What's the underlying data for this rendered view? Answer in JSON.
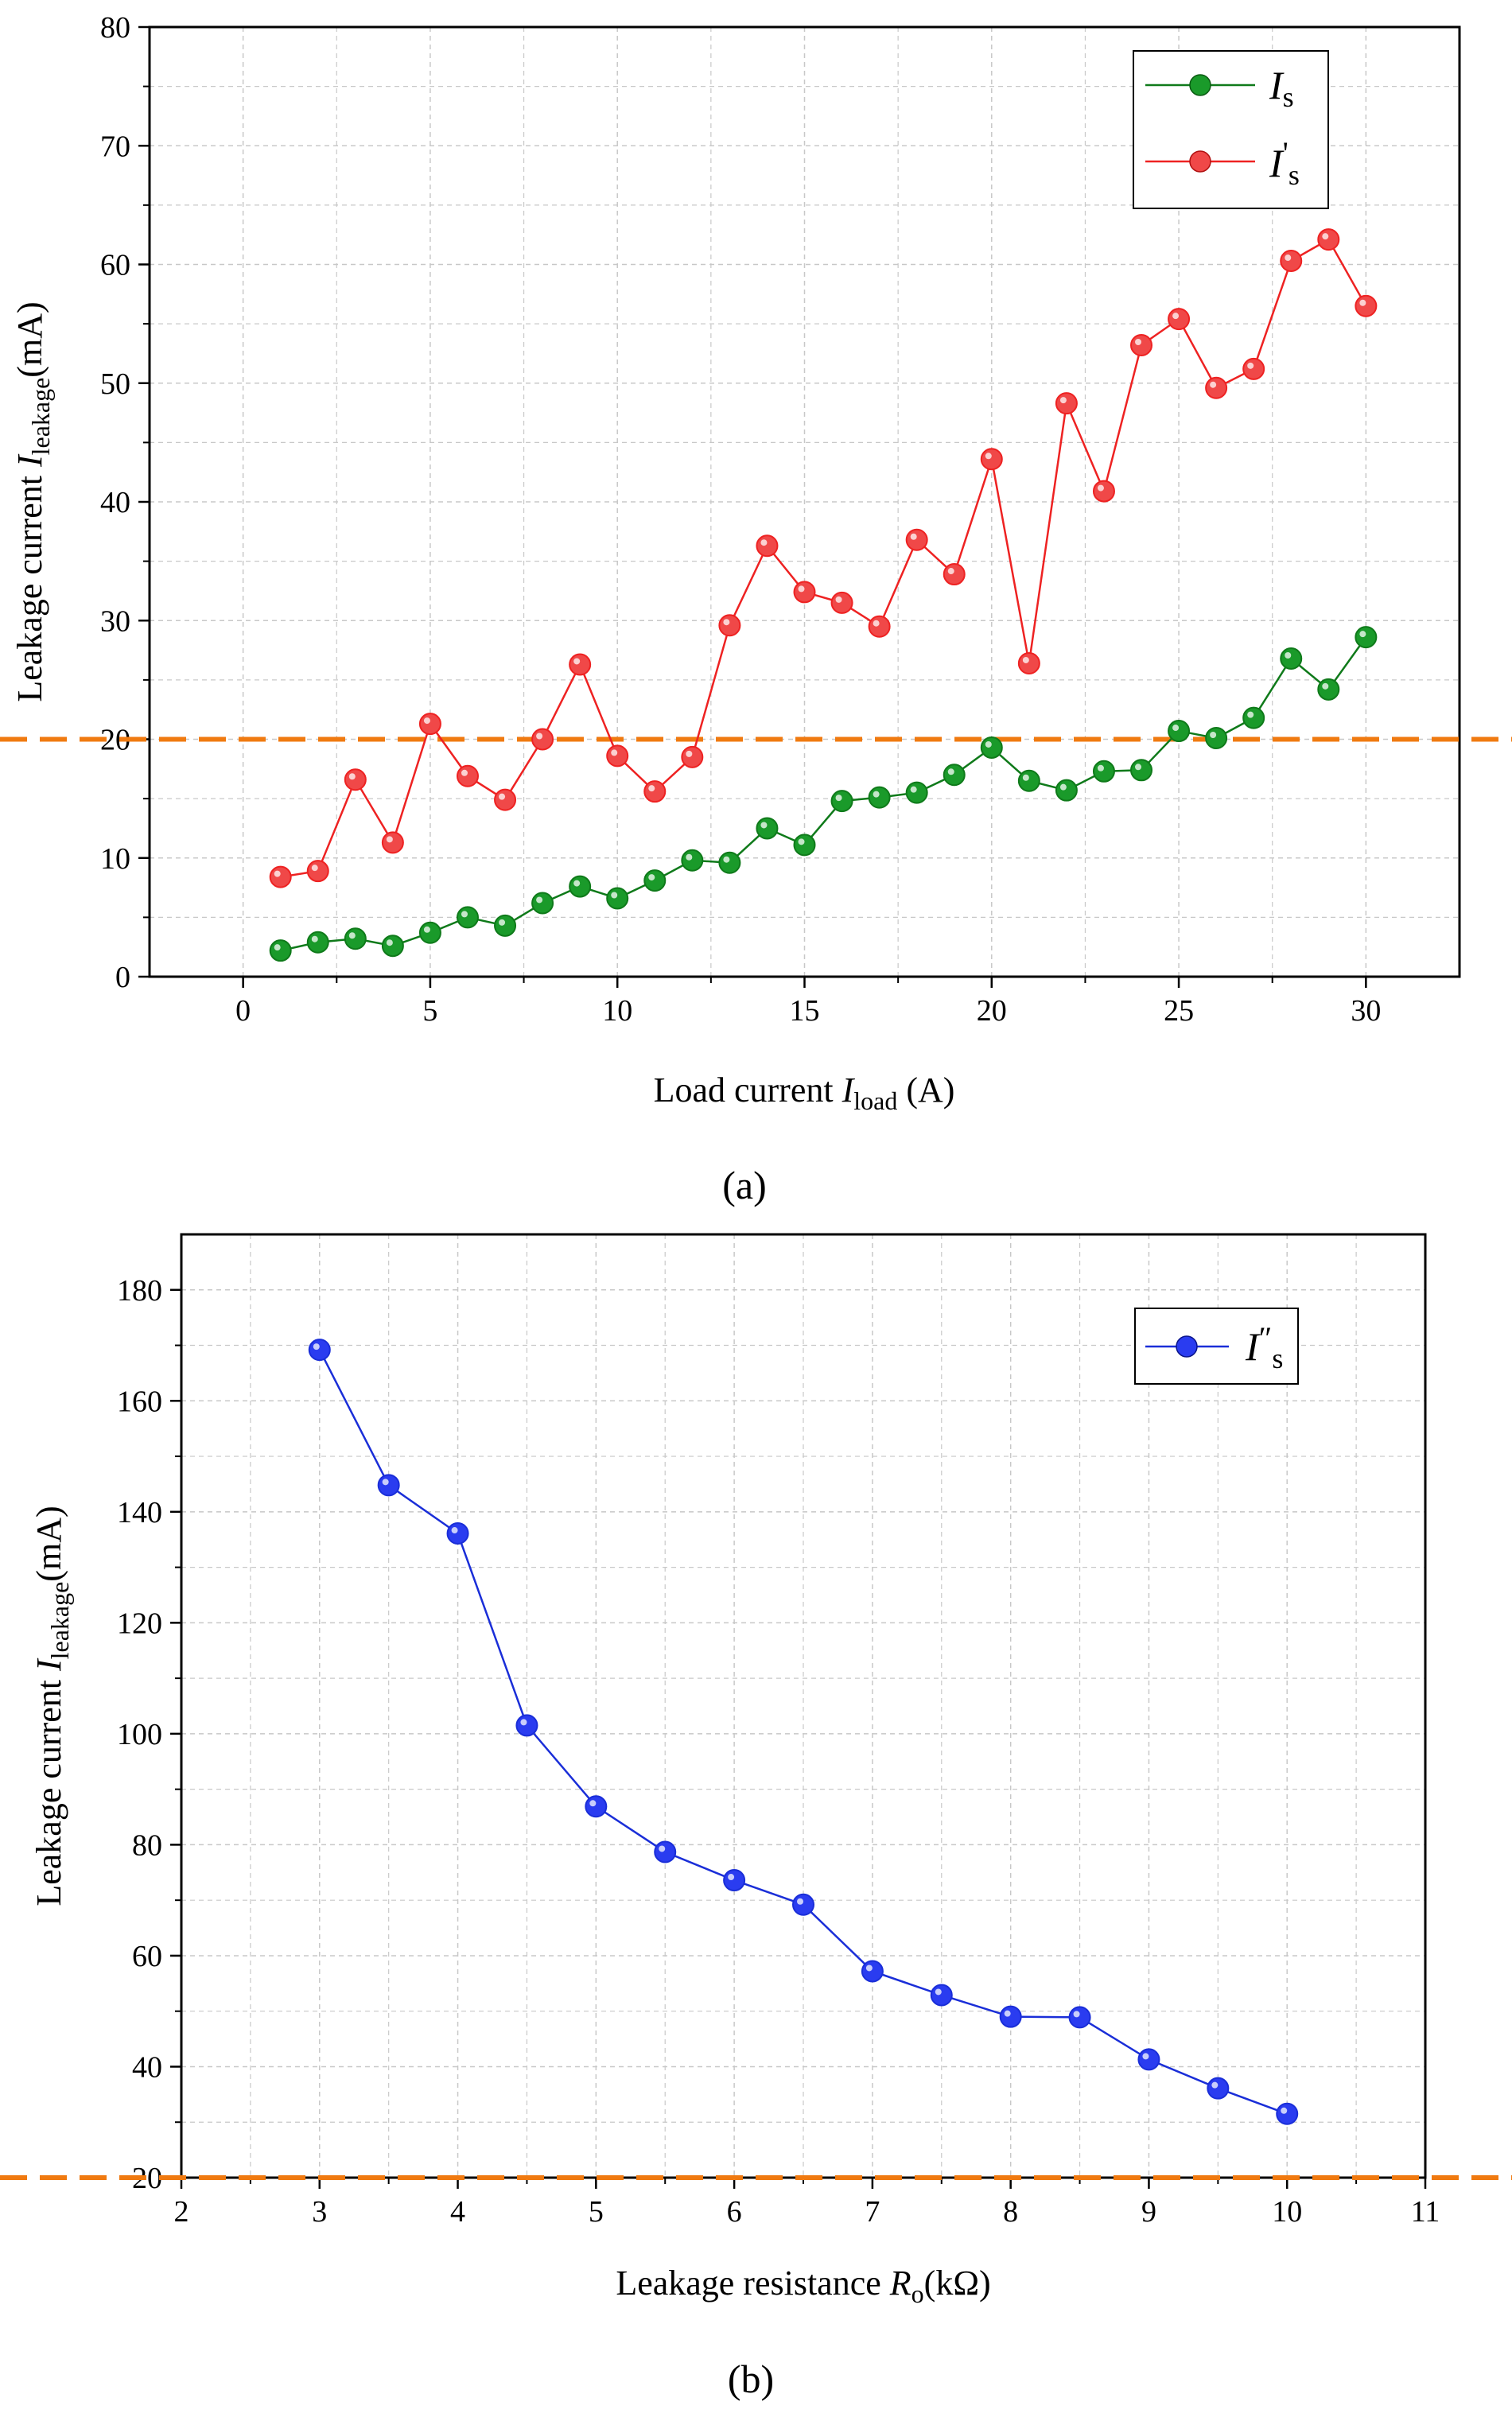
{
  "chart_data": [
    {
      "type": "line",
      "panel_label": "(a)",
      "xlabel": "Load current I_load (A)",
      "ylabel": "Leakage current I_leakage(mA)",
      "xlim": [
        -2.5,
        32.5
      ],
      "ylim": [
        0,
        80
      ],
      "x_ticks": [
        0,
        5,
        10,
        15,
        20,
        25,
        30
      ],
      "y_ticks": [
        0,
        10,
        20,
        30,
        40,
        50,
        60,
        70,
        80
      ],
      "grid": true,
      "threshold": 20,
      "legend_position": "top-right",
      "x": [
        1,
        2,
        3,
        4,
        5,
        6,
        7,
        8,
        9,
        10,
        11,
        12,
        13,
        14,
        15,
        16,
        17,
        18,
        19,
        20,
        21,
        22,
        23,
        24,
        25,
        26,
        27,
        28,
        29,
        30
      ],
      "series": [
        {
          "name": "I_s",
          "label_main": "I",
          "label_sub": "s",
          "color": "#0f7a1a",
          "marker_color": "#1a9a2a",
          "values": [
            2.2,
            2.9,
            3.2,
            2.6,
            3.7,
            5.0,
            4.3,
            6.2,
            7.6,
            6.6,
            8.1,
            9.8,
            9.6,
            12.5,
            11.1,
            14.8,
            15.1,
            15.5,
            17.0,
            19.3,
            16.5,
            15.7,
            17.3,
            17.4,
            20.7,
            20.1,
            21.8,
            26.8,
            24.2,
            28.6
          ]
        },
        {
          "name": "I'_s",
          "label_main": "I",
          "label_prime": "'",
          "label_sub": "s",
          "color": "#ee2222",
          "marker_color": "#f04848",
          "values": [
            8.4,
            8.9,
            16.6,
            11.3,
            21.3,
            16.9,
            14.9,
            20.0,
            26.3,
            18.6,
            15.6,
            18.5,
            29.6,
            36.3,
            32.4,
            31.5,
            29.5,
            36.8,
            33.9,
            43.6,
            26.4,
            48.3,
            40.9,
            53.2,
            55.4,
            49.6,
            51.2,
            60.3,
            62.1,
            56.5
          ]
        }
      ]
    },
    {
      "type": "line",
      "panel_label": "(b)",
      "xlabel": "Leakage resistance R_o(kΩ)",
      "ylabel": "Leakage current I_leakage(mA)",
      "xlim": [
        2,
        11
      ],
      "ylim": [
        20,
        190
      ],
      "x_ticks": [
        2,
        3,
        4,
        5,
        6,
        7,
        8,
        9,
        10,
        11
      ],
      "y_ticks": [
        20,
        40,
        60,
        80,
        100,
        120,
        140,
        160,
        180
      ],
      "grid": true,
      "threshold": 20,
      "legend_position": "top-right",
      "x": [
        3,
        3.5,
        4,
        4.5,
        5,
        5.5,
        6,
        6.5,
        7,
        7.5,
        8,
        8.5,
        9,
        9.5,
        10
      ],
      "series": [
        {
          "name": "I''_s",
          "label_main": "I",
          "label_prime": "″",
          "label_sub": "s",
          "color": "#1a2ed8",
          "marker_color": "#2a3cf0",
          "values": [
            169.2,
            144.8,
            136.1,
            101.5,
            86.9,
            78.7,
            73.6,
            69.2,
            57.2,
            52.9,
            49.0,
            48.9,
            41.3,
            36.1,
            31.5
          ]
        }
      ]
    }
  ],
  "labels": {
    "a": {
      "panel": "(a)",
      "xlabel_main": "Load current ",
      "xlabel_sym": "I",
      "xlabel_sub": "load",
      "xlabel_unit": " (A)",
      "ylabel_main": "Leakage current ",
      "ylabel_sym": "I",
      "ylabel_sub": "leakage",
      "ylabel_unit": "(mA)"
    },
    "b": {
      "panel": "(b)",
      "xlabel_main": "Leakage resistance ",
      "xlabel_sym": "R",
      "xlabel_sub": "o",
      "xlabel_unit": "(kΩ)",
      "ylabel_main": "Leakage current ",
      "ylabel_sym": "I",
      "ylabel_sub": "leakage",
      "ylabel_unit": "(mA)"
    }
  },
  "colors": {
    "threshold": "#f07a10",
    "grid": "#c8c8c8",
    "axis": "#000000"
  }
}
